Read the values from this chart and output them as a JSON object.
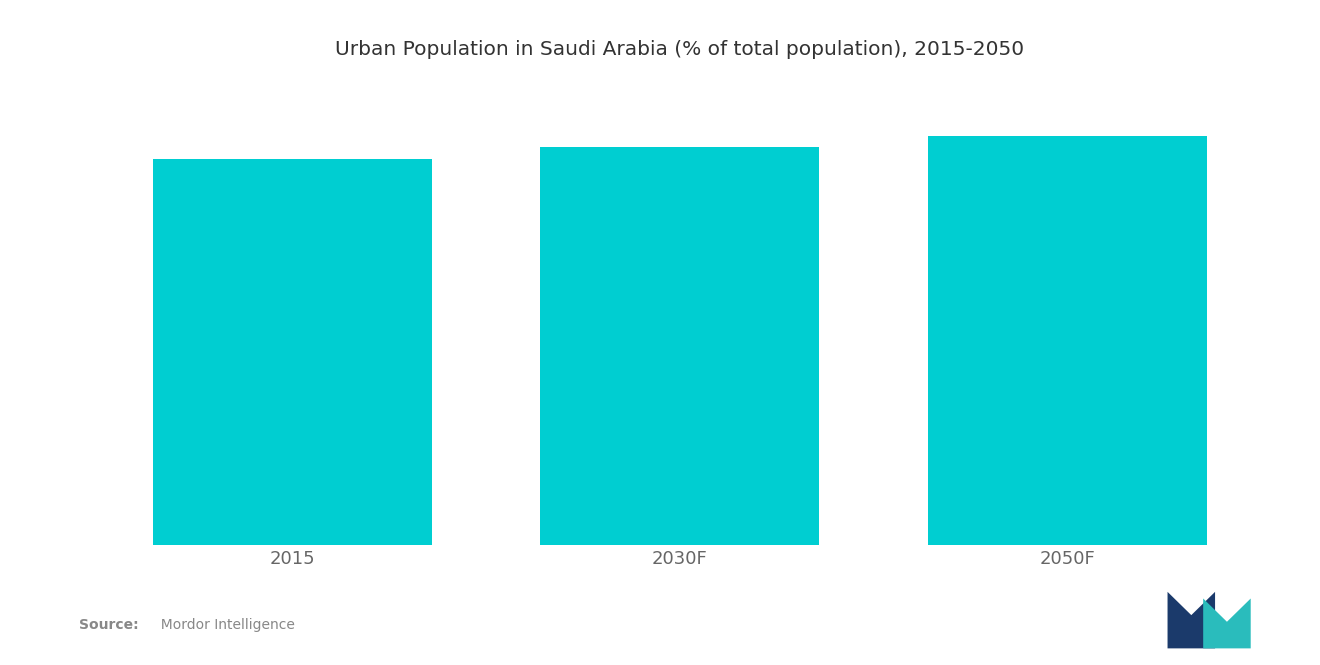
{
  "title": "Urban Population in Saudi Arabia (% of total population), 2015-2050",
  "categories": [
    "2015",
    "2030F",
    "2050F"
  ],
  "values": [
    83.0,
    85.5,
    88.0
  ],
  "bar_color": "#00CED1",
  "background_color": "#ffffff",
  "title_fontsize": 14.5,
  "tick_fontsize": 13,
  "source_bold": "Source:",
  "source_normal": "  Mordor Intelligence",
  "ylim": [
    0,
    100
  ],
  "bar_width": 0.72
}
